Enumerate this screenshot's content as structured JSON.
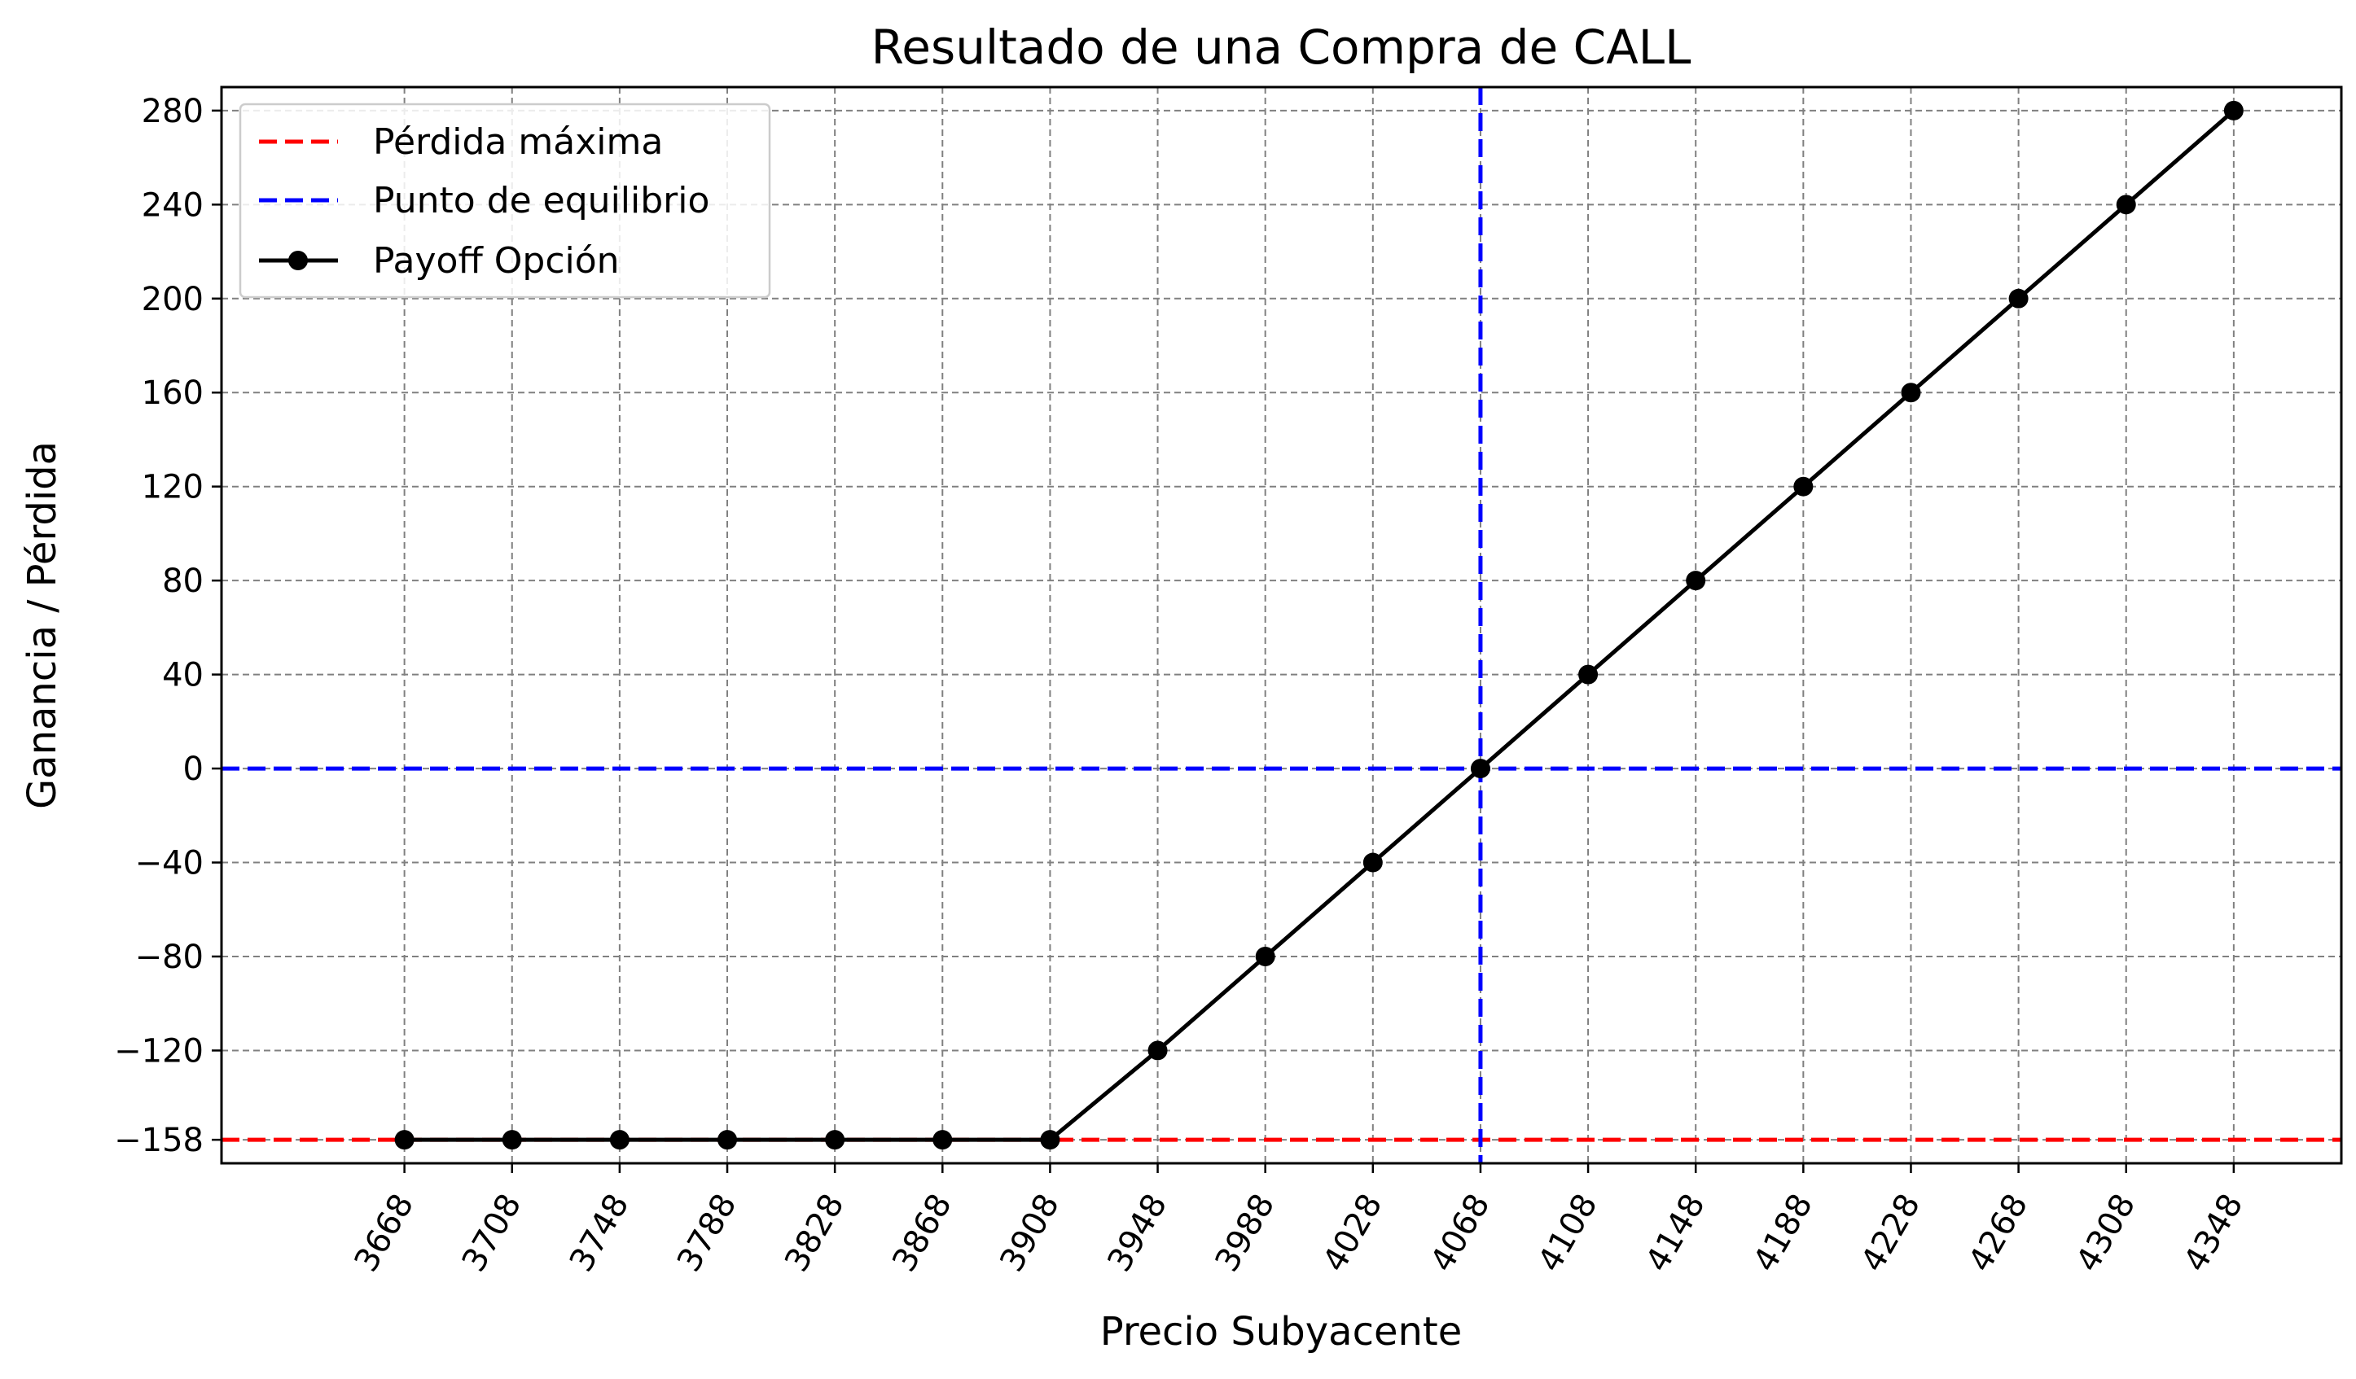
{
  "chart_data": {
    "type": "line",
    "title": "Resultado de una Compra de CALL",
    "xlabel": "Precio Subyacente",
    "ylabel": "Ganancia / Pérdida",
    "x": [
      3668,
      3708,
      3748,
      3788,
      3828,
      3868,
      3908,
      3948,
      3988,
      4028,
      4068,
      4108,
      4148,
      4188,
      4228,
      4268,
      4308,
      4348
    ],
    "x_tick_labels": [
      "3668",
      "3708",
      "3748",
      "3788",
      "3828",
      "3868",
      "3908",
      "3948",
      "3988",
      "4028",
      "4068",
      "4108",
      "4148",
      "4188",
      "4228",
      "4268",
      "4308",
      "4348"
    ],
    "y_ticks": [
      280,
      240,
      200,
      160,
      120,
      80,
      40,
      0,
      -40,
      -80,
      -120,
      -158
    ],
    "y_tick_labels": [
      "280",
      "240",
      "200",
      "160",
      "120",
      "80",
      "40",
      "0",
      "−40",
      "−80",
      "−120",
      "−158"
    ],
    "xlim": [
      3600,
      4388
    ],
    "ylim": [
      -168,
      290
    ],
    "grid": true,
    "legend_position": "top-left",
    "series": [
      {
        "name": "Payoff Opción",
        "style": "solid line with circle markers",
        "color": "#000000",
        "values": [
          -158,
          -158,
          -158,
          -158,
          -158,
          -158,
          -158,
          -120,
          -80,
          -40,
          0,
          40,
          80,
          120,
          160,
          200,
          240,
          280
        ]
      }
    ],
    "reference_lines": [
      {
        "name": "Pérdida máxima",
        "orientation": "horizontal",
        "value": -158,
        "color": "#ff0000",
        "style": "dashed"
      },
      {
        "name": "Punto de equilibrio",
        "orientation": "horizontal",
        "value": 0,
        "color": "#0000ff",
        "style": "dashed"
      },
      {
        "name": "Punto de equilibrio",
        "orientation": "vertical",
        "value": 4068,
        "color": "#0000ff",
        "style": "dashed"
      }
    ],
    "legend": [
      {
        "label": "Pérdida máxima",
        "color": "#ff0000",
        "style": "dashed"
      },
      {
        "label": "Punto de equilibrio",
        "color": "#0000ff",
        "style": "dashed"
      },
      {
        "label": "Payoff Opción",
        "color": "#000000",
        "style": "solid-marker"
      }
    ]
  }
}
